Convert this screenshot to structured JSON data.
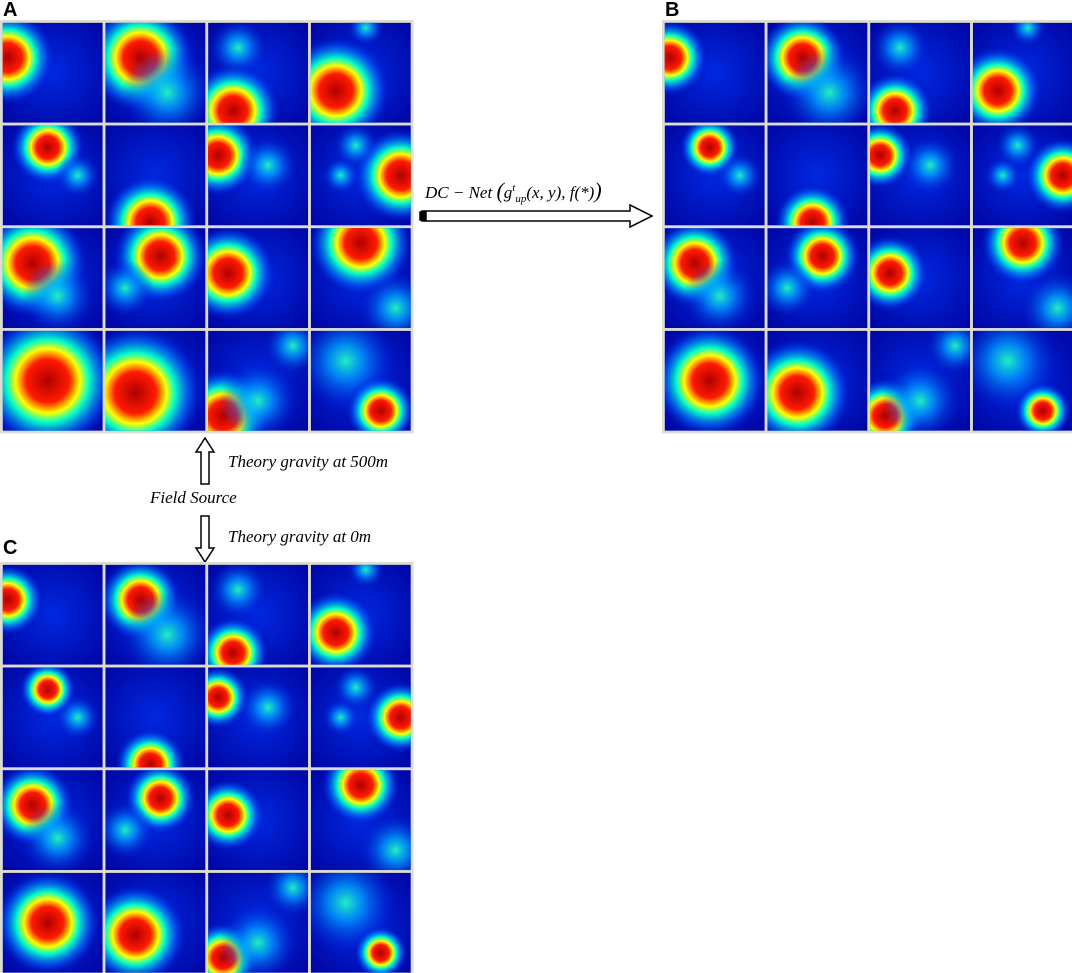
{
  "panels": [
    {
      "label": "A"
    },
    {
      "label": "B"
    },
    {
      "label": "C"
    }
  ],
  "network": {
    "prefix": "DC − Net ",
    "open": "(",
    "g": "g",
    "sup": "t",
    "sub": "up",
    "rest": "(x, y), f(*)",
    "close": ")"
  },
  "annotations": {
    "up": "Theory gravity at 500m",
    "source": "Field Source",
    "down": "Theory gravity at 0m"
  }
}
